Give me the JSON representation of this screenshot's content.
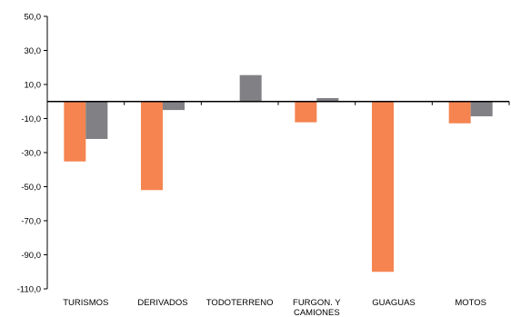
{
  "chart_data": {
    "type": "bar",
    "categories": [
      "TURISMOS",
      "DERIVADOS",
      "TODOTERRENO",
      "FURGON. Y\nCAMIONES",
      "GUAGUAS",
      "MOTOS"
    ],
    "series": [
      {
        "color": "#F58450",
        "values": [
          -35.2,
          -52.0,
          null,
          -12.2,
          -100.0,
          -12.8
        ]
      },
      {
        "color": "#808085",
        "values": [
          -22.0,
          -5.0,
          15.5,
          2.0,
          null,
          -8.7
        ]
      }
    ],
    "ylim": [
      -110,
      50
    ],
    "yticks": [
      "50,0",
      "30,0",
      "10,0",
      "-10,0",
      "-30,0",
      "-50,0",
      "-70,0",
      "-90,0",
      "-110,0"
    ],
    "yticks_values": [
      50,
      30,
      10,
      -10,
      -30,
      -50,
      -70,
      -90,
      -110
    ],
    "title": "",
    "xlabel": "",
    "ylabel": "",
    "grid": false,
    "legend": "none"
  }
}
